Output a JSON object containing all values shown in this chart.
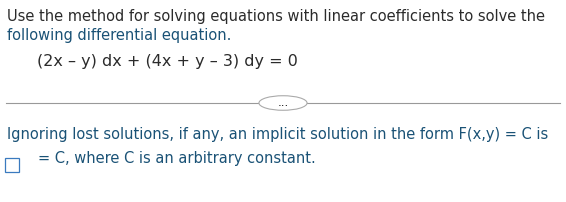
{
  "bg_color": "#ffffff",
  "text_color_black": "#2b2b2b",
  "text_color_blue": "#1a5276",
  "line1": "Use the method for solving equations with linear coefficients to solve the",
  "line2": "following differential equation.",
  "equation": "(2x – y) dx + (4x + y – 3) dy = 0",
  "dots_text": "...",
  "bottom_line1": "Ignoring lost solutions, if any, an implicit solution in the form F(x,y) = C is",
  "bottom_line2": "= C, where C is an arbitrary constant.",
  "font_size_main": 10.5,
  "font_size_eq": 11.5,
  "font_size_dots": 8.5
}
